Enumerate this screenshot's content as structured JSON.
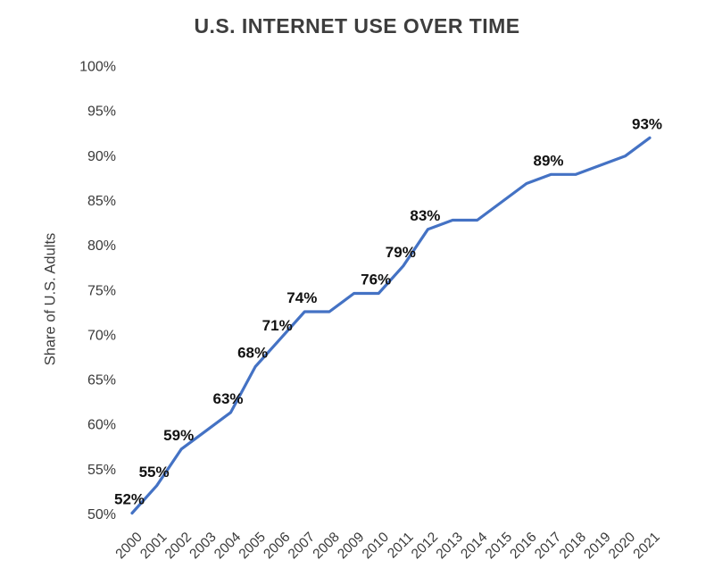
{
  "title": "U.S. INTERNET USE OVER TIME",
  "colors": {
    "background": "#ffffff",
    "line": "#4472C4",
    "title_text": "#3d3d3d",
    "axis_text": "#3a3a3a",
    "data_label_text": "#111111"
  },
  "chart_data": {
    "type": "line",
    "title": "U.S. INTERNET USE OVER TIME",
    "xlabel": "",
    "ylabel": "Share of U.S. Adults",
    "ylim": [
      50,
      100
    ],
    "grid": false,
    "legend": false,
    "x": [
      2000,
      2001,
      2002,
      2003,
      2004,
      2005,
      2006,
      2007,
      2008,
      2009,
      2010,
      2011,
      2012,
      2013,
      2014,
      2015,
      2016,
      2017,
      2018,
      2019,
      2020,
      2021
    ],
    "series": [
      {
        "name": "Share of U.S. Adults",
        "values": [
          52,
          55,
          59,
          61,
          63,
          68,
          71,
          74,
          74,
          76,
          76,
          79,
          83,
          84,
          84,
          86,
          88,
          89,
          89,
          90,
          91,
          93
        ]
      }
    ],
    "y_ticks": [
      "100%",
      "95%",
      "90%",
      "85%",
      "80%",
      "75%",
      "70%",
      "65%",
      "60%",
      "55%",
      "50%"
    ],
    "point_labels": {
      "2000": "52%",
      "2001": "55%",
      "2002": "59%",
      "2004": "63%",
      "2005": "68%",
      "2006": "71%",
      "2007": "74%",
      "2010": "76%",
      "2011": "79%",
      "2012": "83%",
      "2017": "89%",
      "2021": "93%"
    }
  }
}
